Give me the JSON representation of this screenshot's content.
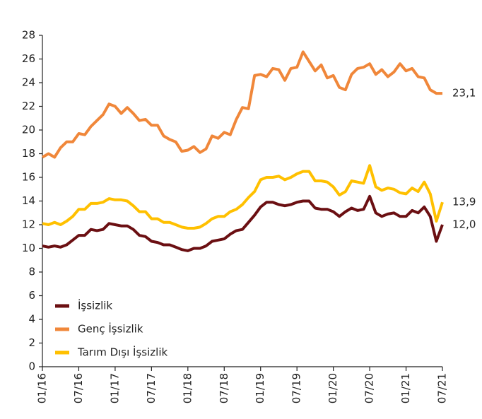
{
  "chart_data": {
    "type": "line",
    "categories": [
      "01/16",
      null,
      null,
      null,
      null,
      null,
      "07/16",
      null,
      null,
      null,
      null,
      null,
      "01/17",
      null,
      null,
      null,
      null,
      null,
      "07/17",
      null,
      null,
      null,
      null,
      null,
      "01/18",
      null,
      null,
      null,
      null,
      null,
      "07/18",
      null,
      null,
      null,
      null,
      null,
      "01/19",
      null,
      null,
      null,
      null,
      null,
      "07/19",
      null,
      null,
      null,
      null,
      null,
      "01/20",
      null,
      null,
      null,
      null,
      null,
      "07/20",
      null,
      null,
      null,
      null,
      null,
      "01/21",
      null,
      null,
      null,
      null,
      null,
      "07/21"
    ],
    "series": [
      {
        "name": "İşsizlik",
        "color": "#6b0f12",
        "end_label": "12,0",
        "values": [
          10.2,
          10.1,
          10.2,
          10.1,
          10.3,
          10.7,
          11.1,
          11.1,
          11.6,
          11.5,
          11.6,
          12.1,
          12.0,
          11.9,
          11.9,
          11.6,
          11.1,
          11.0,
          10.6,
          10.5,
          10.3,
          10.3,
          10.1,
          9.9,
          9.8,
          10.0,
          10.0,
          10.2,
          10.6,
          10.7,
          10.8,
          11.2,
          11.5,
          11.6,
          12.2,
          12.8,
          13.5,
          13.9,
          13.9,
          13.7,
          13.6,
          13.7,
          13.9,
          14.0,
          14.0,
          13.4,
          13.3,
          13.3,
          13.1,
          12.7,
          13.1,
          13.4,
          13.2,
          13.3,
          14.4,
          13.0,
          12.7,
          12.9,
          13.0,
          12.7,
          12.7,
          13.2,
          13.0,
          13.5,
          12.7,
          10.6,
          12.0
        ]
      },
      {
        "name": "Genç İşsizlik",
        "color": "#f0873a",
        "end_label": "23,1",
        "values": [
          17.7,
          18.0,
          17.7,
          18.5,
          19.0,
          19.0,
          19.7,
          19.6,
          20.3,
          20.8,
          21.3,
          22.2,
          22.0,
          21.4,
          21.9,
          21.4,
          20.8,
          20.9,
          20.4,
          20.4,
          19.5,
          19.2,
          19.0,
          18.2,
          18.3,
          18.6,
          18.1,
          18.4,
          19.5,
          19.3,
          19.8,
          19.6,
          20.9,
          21.9,
          21.8,
          24.6,
          24.7,
          24.5,
          25.2,
          25.1,
          24.2,
          25.2,
          25.3,
          26.6,
          25.8,
          25.0,
          25.5,
          24.4,
          24.6,
          23.6,
          23.4,
          24.7,
          25.2,
          25.3,
          25.6,
          24.7,
          25.1,
          24.5,
          24.9,
          25.6,
          25.0,
          25.2,
          24.5,
          24.4,
          23.4,
          23.1,
          23.1
        ]
      },
      {
        "name": "Tarım Dışı İşsizlik",
        "color": "#ffc000",
        "end_label": "13,9",
        "values": [
          12.1,
          12.0,
          12.2,
          12.0,
          12.3,
          12.7,
          13.3,
          13.3,
          13.8,
          13.8,
          13.9,
          14.2,
          14.1,
          14.1,
          14.0,
          13.6,
          13.1,
          13.1,
          12.5,
          12.5,
          12.2,
          12.2,
          12.0,
          11.8,
          11.7,
          11.7,
          11.8,
          12.1,
          12.5,
          12.7,
          12.7,
          13.1,
          13.3,
          13.7,
          14.3,
          14.8,
          15.8,
          16.0,
          16.0,
          16.1,
          15.8,
          16.0,
          16.3,
          16.5,
          16.5,
          15.7,
          15.7,
          15.6,
          15.2,
          14.5,
          14.8,
          15.7,
          15.6,
          15.5,
          17.0,
          15.2,
          14.9,
          15.1,
          15.0,
          14.7,
          14.6,
          15.1,
          14.8,
          15.6,
          14.6,
          12.3,
          13.9
        ]
      }
    ],
    "ylim": [
      0,
      28
    ],
    "yticks": [
      0,
      2,
      4,
      6,
      8,
      10,
      12,
      14,
      16,
      18,
      20,
      22,
      24,
      26,
      28
    ],
    "grid": false,
    "legend": "lower left"
  }
}
